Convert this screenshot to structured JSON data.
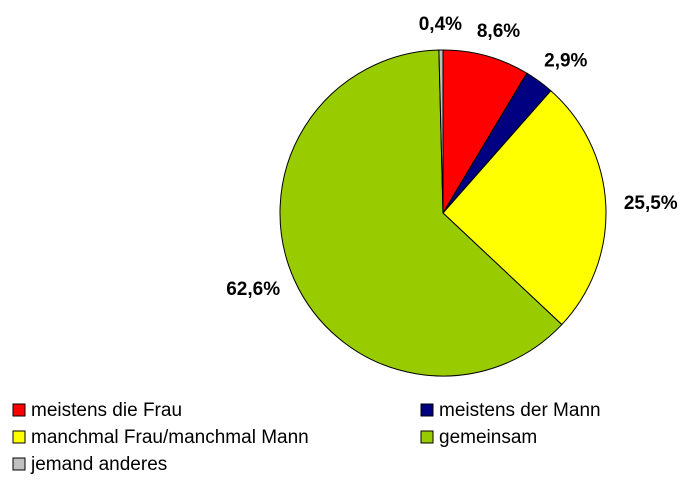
{
  "chart_data": {
    "type": "pie",
    "categories": [
      "meistens die Frau",
      "meistens der Mann",
      "manchmal Frau/manchmal Mann",
      "gemeinsam",
      "jemand anderes"
    ],
    "values": [
      8.6,
      2.9,
      25.5,
      62.6,
      0.4
    ],
    "value_labels": [
      "8,6%",
      "2,9%",
      "25,5%",
      "62,6%",
      "0,4%"
    ],
    "colors": [
      "#ff0000",
      "#000080",
      "#ffff00",
      "#99cc00",
      "#c0c0c0"
    ],
    "legend": "bottom"
  }
}
